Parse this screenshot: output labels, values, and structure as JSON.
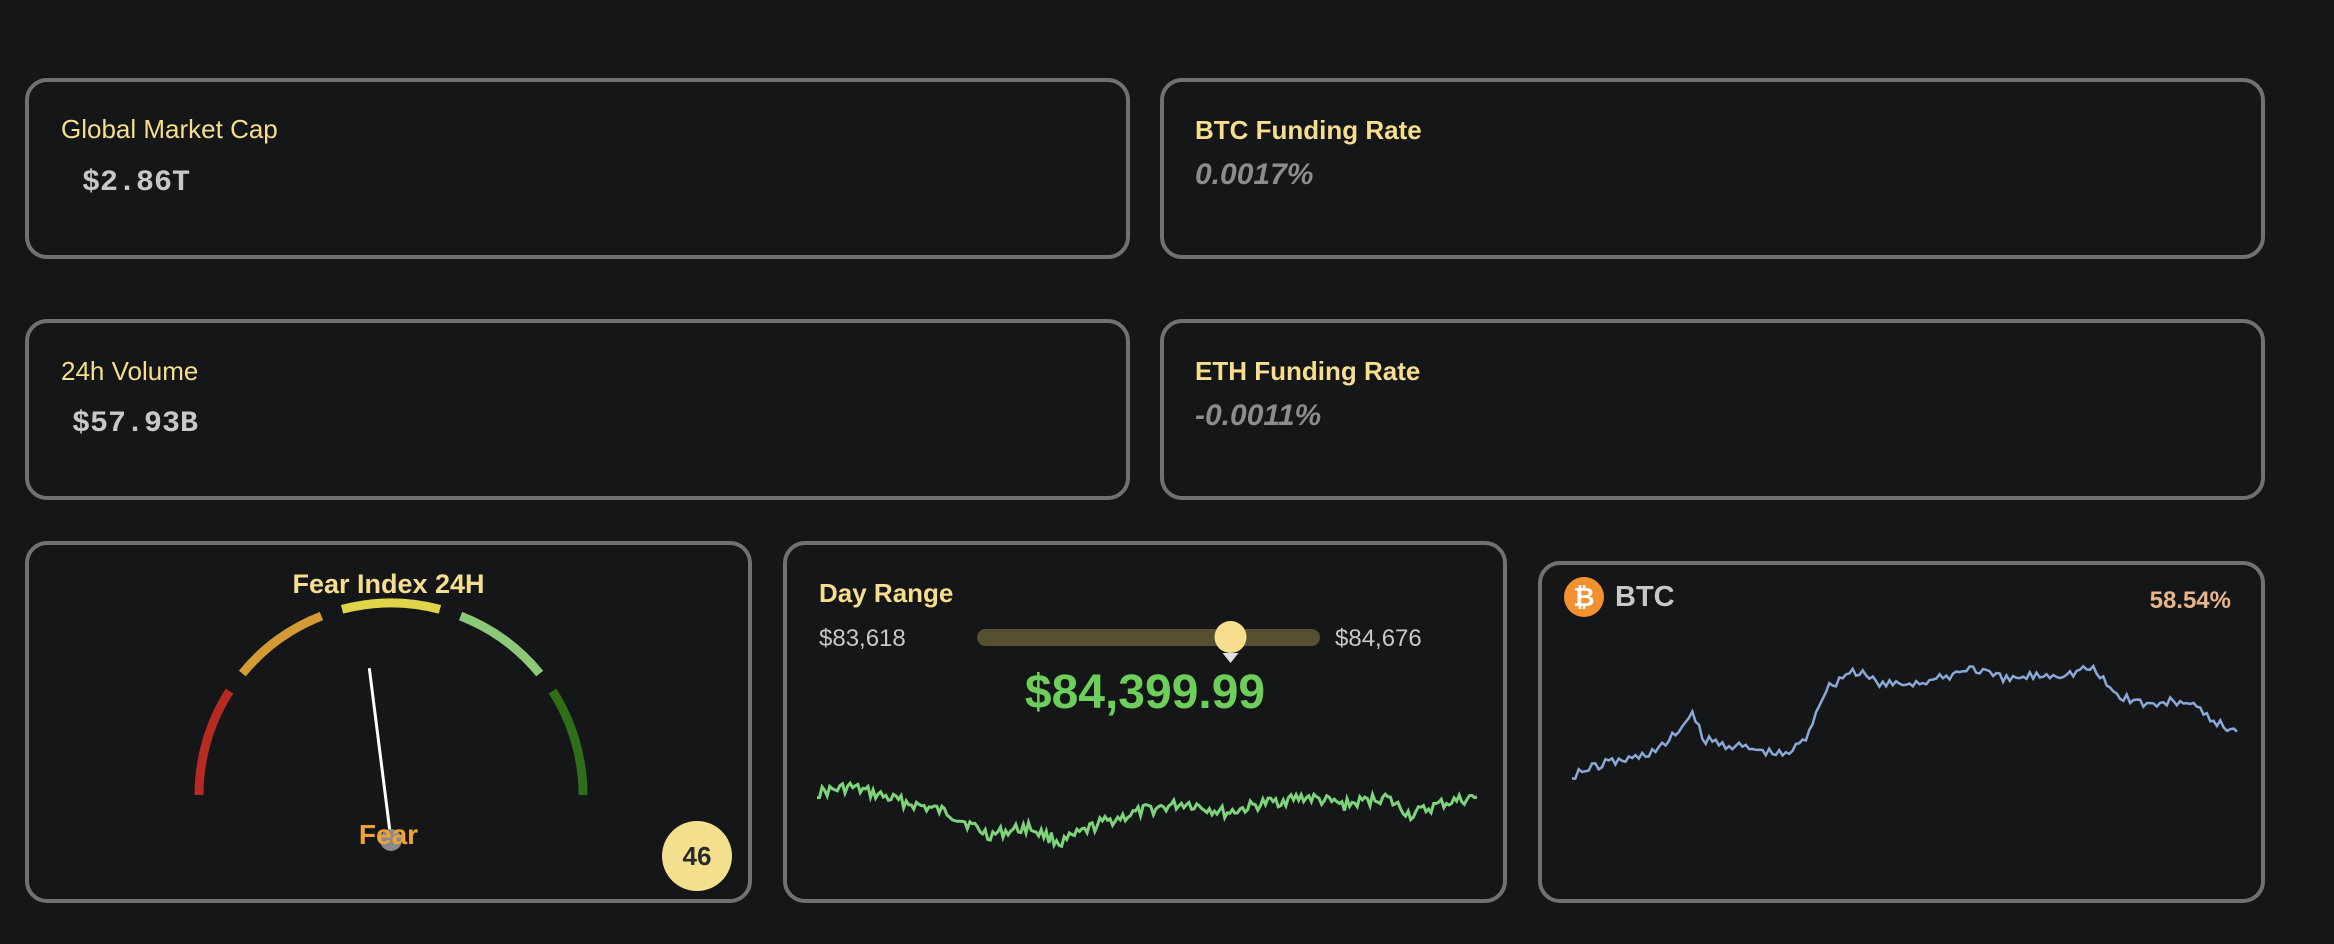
{
  "cards": {
    "global_market_cap": {
      "label": "Global Market Cap",
      "value": "$2.86T"
    },
    "btc_funding_rate": {
      "label": "BTC Funding Rate",
      "value": "0.0017%"
    },
    "volume_24h": {
      "label": "24h Volume",
      "value": "$57.93B"
    },
    "eth_funding_rate": {
      "label": "ETH Funding Rate",
      "value": "-0.0011%"
    }
  },
  "fear_index": {
    "title": "Fear Index 24H",
    "status": "Fear",
    "value": 46,
    "badge": "46",
    "zones": [
      {
        "from": 0,
        "to": 20,
        "color": "#b52b22"
      },
      {
        "from": 20,
        "to": 40,
        "color": "#d49a34"
      },
      {
        "from": 40,
        "to": 60,
        "color": "#dfd44a"
      },
      {
        "from": 60,
        "to": 80,
        "color": "#8ec97a"
      },
      {
        "from": 80,
        "to": 100,
        "color": "#2f6e19"
      }
    ],
    "status_color": "#f0a23a",
    "badge_color": "#f3df8d"
  },
  "day_range": {
    "title": "Day Range",
    "low": "$83,618",
    "high": "$84,676",
    "low_value": 83618,
    "high_value": 84676,
    "current_value": 84399.99,
    "current": "$84,399.99",
    "current_color": "#6dce5a",
    "sparkline_color": "#7ed47a"
  },
  "btc_card": {
    "name": "BTC",
    "percent": "58.54%",
    "icon": "bitcoin-icon",
    "icon_color": "#f2912e",
    "percent_color": "#e8b68a",
    "line_color": "#8aa9d6"
  }
}
